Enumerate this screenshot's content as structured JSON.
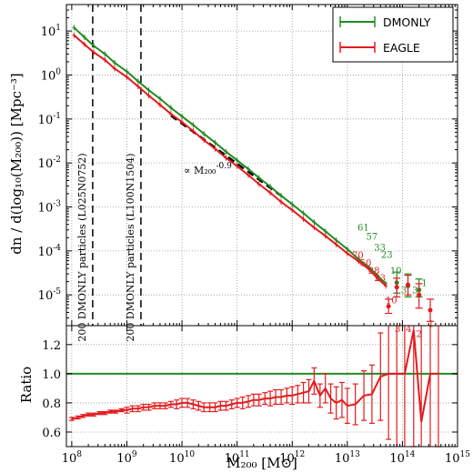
{
  "chart_data": [
    {
      "type": "line",
      "panel": "top",
      "x_scale": "log",
      "y_scale": "log",
      "xlim": [
        80000000.0,
        1000000000000000.0
      ],
      "ylim": [
        2e-06,
        40
      ],
      "ylabel": "dn / d(log₁₀(M₂₀₀))  [Mpc⁻³]",
      "xtick_labels": [
        "10^8",
        "10^9",
        "10^10",
        "10^11",
        "10^12",
        "10^13",
        "10^14",
        "10^15"
      ],
      "ytick_labels": [
        "10^-5",
        "10^-4",
        "10^-3",
        "10^-2",
        "10^-1",
        "10^0",
        "10^1"
      ],
      "grid": true,
      "legend_position": "top-right",
      "series": [
        {
          "name": "DMONLY",
          "color": "#228B22",
          "x": [
            110000000.0,
            170000000.0,
            250000000.0,
            400000000.0,
            600000000.0,
            1000000000.0,
            1600000000.0,
            2500000000.0,
            4000000000.0,
            6300000000.0,
            10000000000.0,
            16000000000.0,
            25000000000.0,
            40000000000.0,
            63000000000.0,
            100000000000.0,
            160000000000.0,
            250000000000.0,
            400000000000.0,
            630000000000.0,
            1000000000000.0,
            1600000000000.0,
            2500000000000.0,
            4000000000000.0,
            6300000000000.0,
            10000000000000.0,
            16000000000000.0,
            25000000000000.0,
            35000000000000.0,
            50000000000000.0
          ],
          "y": [
            12,
            7.2,
            4.6,
            3.0,
            1.9,
            1.2,
            0.72,
            0.45,
            0.29,
            0.18,
            0.115,
            0.073,
            0.046,
            0.029,
            0.018,
            0.0115,
            0.0073,
            0.0046,
            0.0029,
            0.0018,
            0.00115,
            0.00072,
            0.00045,
            0.00028,
            0.000175,
            0.00011,
            6.5e-05,
            4.2e-05,
            2.8e-05,
            1.8e-05
          ]
        },
        {
          "name": "EAGLE",
          "color": "#e41a1c",
          "x": [
            110000000.0,
            170000000.0,
            250000000.0,
            400000000.0,
            600000000.0,
            1000000000.0,
            1600000000.0,
            2500000000.0,
            4000000000.0,
            6300000000.0,
            10000000000.0,
            16000000000.0,
            25000000000.0,
            40000000000.0,
            63000000000.0,
            100000000000.0,
            160000000000.0,
            250000000000.0,
            400000000000.0,
            630000000000.0,
            1000000000000.0,
            1600000000000.0,
            2500000000000.0,
            4000000000000.0,
            6300000000000.0,
            10000000000000.0,
            16000000000000.0,
            25000000000000.0,
            35000000000000.0,
            50000000000000.0
          ],
          "y": [
            8.0,
            5.0,
            3.3,
            2.2,
            1.4,
            0.9,
            0.55,
            0.34,
            0.21,
            0.13,
            0.085,
            0.053,
            0.033,
            0.021,
            0.013,
            0.0085,
            0.0053,
            0.0033,
            0.0021,
            0.0013,
            0.00085,
            0.00053,
            0.00034,
            0.00022,
            0.00014,
            8.8e-05,
            5.8e-05,
            3.8e-05,
            2.4e-05,
            1.6e-05
          ]
        }
      ],
      "dmonly_sparse_points": {
        "x": [
          79000000000000.0,
          126000000000000.0,
          200000000000000.0
        ],
        "y": [
          1.9e-05,
          1.6e-05,
          1.3e-05
        ],
        "err_low": [
          1.1e-05,
          9e-06,
          9e-06
        ],
        "err_high": [
          3.3e-05,
          3e-05,
          2.3e-05
        ]
      },
      "eagle_sparse_points": {
        "x": [
          56000000000000.0,
          79000000000000.0,
          126000000000000.0,
          200000000000000.0,
          320000000000000.0
        ],
        "y": [
          5.5e-06,
          1.5e-05,
          1.7e-05,
          1e-05,
          4.5e-06
        ],
        "err_low": [
          3.8e-06,
          9e-06,
          1e-05,
          5e-06,
          2.5e-06
        ],
        "err_high": [
          8e-06,
          2.4e-05,
          2.8e-05,
          1.8e-05,
          8e-06
        ]
      },
      "dmonly_counts": {
        "labels": [
          "61",
          "57",
          "33",
          "23",
          "10",
          "3",
          "3",
          "1"
        ],
        "x": [
          19500000000000.0,
          28000000000000.0,
          39000000000000.0,
          52000000000000.0,
          76000000000000.0,
          106000000000000.0,
          170000000000000.0,
          250000000000000.0
        ],
        "y": [
          0.00029,
          0.00018,
          0.000102,
          7e-05,
          3e-05,
          1.08e-05,
          1.08e-05,
          1.6e-05
        ]
      },
      "eagle_counts": {
        "labels": [
          "70",
          "50",
          "28",
          "23",
          "10",
          "3",
          "4",
          "2",
          "1"
        ],
        "x": [
          15500000000000.0,
          21500000000000.0,
          30500000000000.0,
          39000000000000.0,
          63000000000000.0,
          82000000000000.0,
          130000000000000.0,
          200000000000000.0,
          330000000000000.0
        ],
        "y": [
          6.8e-05,
          4.5e-05,
          3e-05,
          2.05e-05,
          6.4e-06,
          1.45e-06,
          1.45e-06,
          1.1e-06,
          1.85e-06
        ]
      },
      "vertical_lines": [
        {
          "x": 240000000.0,
          "label": "200 DMONLY particles (L025N0752)"
        },
        {
          "x": 1800000000.0,
          "label": "200 DMONLY particles (L100N1504)"
        }
      ],
      "power_law_guide": {
        "x": [
          6300000000.0,
          630000000000.0
        ],
        "y": [
          0.12,
          0.0018
        ],
        "label": "∝ M₂₀₀^-0.9"
      }
    },
    {
      "type": "line",
      "panel": "bottom",
      "x_scale": "log",
      "y_scale": "linear",
      "xlim": [
        80000000.0,
        1000000000000000.0
      ],
      "ylim": [
        0.5,
        1.33
      ],
      "ylabel": "Ratio",
      "xlabel": "M₂₀₀  [M⊙]",
      "xtick_labels": [
        "10^8",
        "10^9",
        "10^10",
        "10^11",
        "10^12",
        "10^13",
        "10^14",
        "10^15"
      ],
      "ytick_labels": [
        "0.6",
        "0.8",
        "1.0",
        "1.2"
      ],
      "yticks": [
        0.6,
        0.8,
        1.0,
        1.2
      ],
      "grid": true,
      "reference_line": {
        "y": 1.0,
        "color": "#228B22"
      },
      "series": [
        {
          "name": "EAGLE",
          "color": "#e41a1c",
          "x": [
            100000000.0,
            130000000.0,
            160000000.0,
            200000000.0,
            250000000.0,
            320000000.0,
            400000000.0,
            500000000.0,
            630000000.0,
            800000000.0,
            1000000000.0,
            1260000000.0,
            1600000000.0,
            2000000000.0,
            2500000000.0,
            3200000000.0,
            4000000000.0,
            5000000000.0,
            6300000000.0,
            8000000000.0,
            10000000000.0,
            12600000000.0,
            16000000000.0,
            20000000000.0,
            25000000000.0,
            32000000000.0,
            40000000000.0,
            50000000000.0,
            63000000000.0,
            80000000000.0,
            100000000000.0,
            126000000000.0,
            160000000000.0,
            200000000000.0,
            250000000000.0,
            320000000000.0,
            400000000000.0,
            500000000000.0,
            630000000000.0,
            800000000000.0,
            1000000000000.0,
            1260000000000.0,
            1600000000000.0,
            2000000000000.0,
            2500000000000.0,
            3200000000000.0,
            4000000000000.0,
            5000000000000.0,
            6300000000000.0,
            8000000000000.0,
            10000000000000.0,
            14000000000000.0,
            20000000000000.0,
            28000000000000.0,
            40000000000000.0,
            56000000000000.0,
            79000000000000.0,
            110000000000000.0,
            160000000000000.0,
            220000000000000.0,
            320000000000000.0,
            450000000000000.0
          ],
          "y": [
            0.69,
            0.7,
            0.71,
            0.72,
            0.72,
            0.73,
            0.73,
            0.74,
            0.74,
            0.75,
            0.75,
            0.76,
            0.76,
            0.77,
            0.77,
            0.78,
            0.78,
            0.78,
            0.79,
            0.79,
            0.8,
            0.8,
            0.79,
            0.78,
            0.77,
            0.77,
            0.77,
            0.78,
            0.78,
            0.79,
            0.8,
            0.8,
            0.81,
            0.82,
            0.82,
            0.83,
            0.83,
            0.84,
            0.84,
            0.85,
            0.85,
            0.86,
            0.87,
            0.88,
            0.95,
            0.85,
            0.9,
            0.83,
            0.8,
            0.82,
            0.78,
            0.79,
            0.85,
            0.86,
            0.98,
            1.0,
            1.0,
            1.0,
            1.3,
            0.67,
            1.0,
            1.0
          ],
          "err": [
            0.01,
            0.01,
            0.01,
            0.01,
            0.01,
            0.01,
            0.01,
            0.01,
            0.01,
            0.01,
            0.02,
            0.02,
            0.02,
            0.02,
            0.02,
            0.02,
            0.02,
            0.02,
            0.02,
            0.03,
            0.03,
            0.03,
            0.03,
            0.03,
            0.03,
            0.03,
            0.03,
            0.03,
            0.03,
            0.03,
            0.03,
            0.04,
            0.04,
            0.04,
            0.04,
            0.04,
            0.05,
            0.05,
            0.05,
            0.05,
            0.06,
            0.06,
            0.07,
            0.08,
            0.09,
            0.08,
            0.1,
            0.1,
            0.11,
            0.12,
            0.12,
            0.14,
            0.17,
            0.2,
            0.3,
            0.45,
            0.6,
            0.7,
            0.8,
            0.8,
            0.6,
            0.5
          ]
        }
      ]
    }
  ],
  "legend": {
    "items": [
      {
        "label": "DMONLY",
        "color": "#228B22"
      },
      {
        "label": "EAGLE",
        "color": "#e41a1c"
      }
    ]
  }
}
